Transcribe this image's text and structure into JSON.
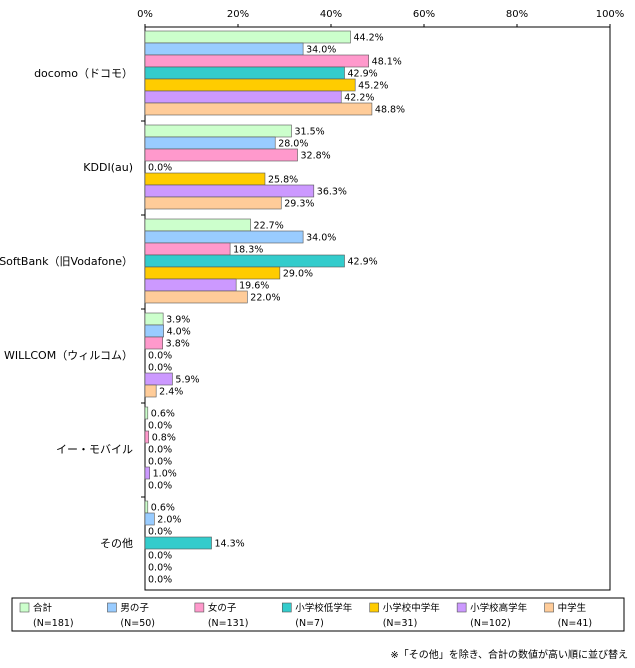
{
  "chart_data": {
    "type": "bar",
    "orientation": "horizontal",
    "xlim": [
      0,
      100
    ],
    "x_ticks": [
      "0%",
      "20%",
      "40%",
      "60%",
      "80%",
      "100%"
    ],
    "categories": [
      "docomo（ドコモ）",
      "KDDI(au)",
      "SoftBank（旧Vodafone）",
      "WILLCOM（ウィルコム）",
      "イー・モバイル",
      "その他"
    ],
    "series": [
      {
        "name": "合計",
        "n": "(N=181)",
        "color": "#ccffcc",
        "values": [
          44.2,
          31.5,
          22.7,
          3.9,
          0.6,
          0.6
        ]
      },
      {
        "name": "男の子",
        "n": "(N=50)",
        "color": "#99ccff",
        "values": [
          34.0,
          28.0,
          34.0,
          4.0,
          0.0,
          2.0
        ]
      },
      {
        "name": "女の子",
        "n": "(N=131)",
        "color": "#ff99cc",
        "values": [
          48.1,
          32.8,
          18.3,
          3.8,
          0.8,
          0.0
        ]
      },
      {
        "name": "小学校低学年",
        "n": "(N=7)",
        "color": "#33cccc",
        "values": [
          42.9,
          0.0,
          42.9,
          0.0,
          0.0,
          14.3
        ]
      },
      {
        "name": "小学校中学年",
        "n": "(N=31)",
        "color": "#ffcc00",
        "values": [
          45.2,
          25.8,
          29.0,
          0.0,
          0.0,
          0.0
        ]
      },
      {
        "name": "小学校高学年",
        "n": "(N=102)",
        "color": "#cc99ff",
        "values": [
          42.2,
          36.3,
          19.6,
          5.9,
          1.0,
          0.0
        ]
      },
      {
        "name": "中学生",
        "n": "(N=41)",
        "color": "#ffcc99",
        "values": [
          48.8,
          29.3,
          22.0,
          2.4,
          0.0,
          0.0
        ]
      }
    ],
    "grid": false,
    "legend_position": "bottom",
    "value_suffix": "%",
    "footnote": "※「その他」を除き、合計の数値が高い順に並び替え"
  }
}
